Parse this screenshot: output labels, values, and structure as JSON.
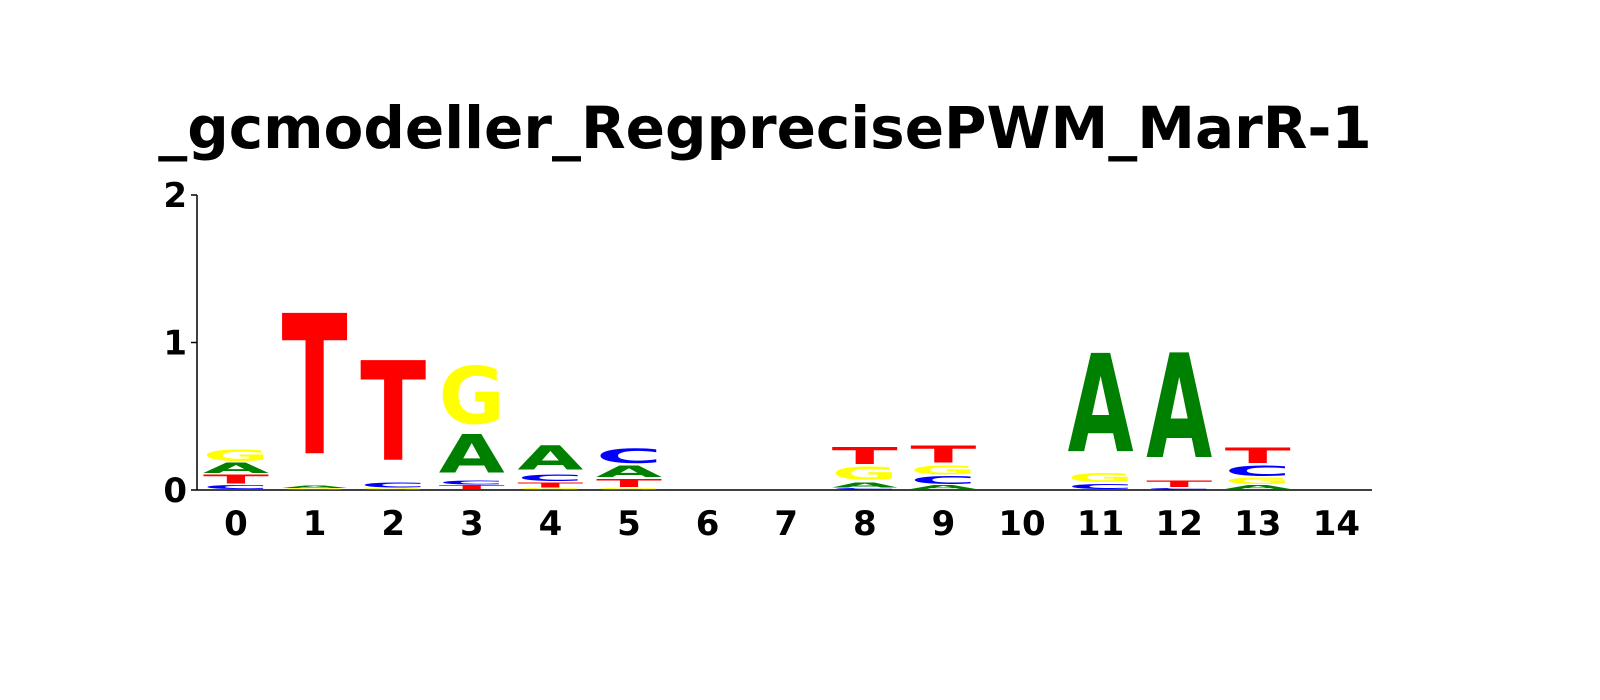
{
  "chart_data": {
    "type": "sequence_logo",
    "title": "_gcmodeller_RegprecisePWM_MarR-1",
    "xlabel": "",
    "ylabel": "",
    "ylim": [
      0,
      2
    ],
    "yticks": [
      "0",
      "1",
      "2"
    ],
    "categories": [
      "0",
      "1",
      "2",
      "3",
      "4",
      "5",
      "6",
      "7",
      "8",
      "9",
      "10",
      "11",
      "12",
      "13",
      "14"
    ],
    "colors": {
      "A": "#008000",
      "C": "#0000ff",
      "G": "#ffff00",
      "T": "#ff0000"
    },
    "positions": [
      {
        "pos": "0",
        "stack": [
          {
            "letter": "C",
            "height": 0.03
          },
          {
            "letter": "T",
            "height": 0.07
          },
          {
            "letter": "A",
            "height": 0.08
          },
          {
            "letter": "G",
            "height": 0.09
          }
        ]
      },
      {
        "pos": "1",
        "stack": [
          {
            "letter": "G",
            "height": 0.01
          },
          {
            "letter": "A",
            "height": 0.02
          },
          {
            "letter": "T",
            "height": 1.1
          }
        ]
      },
      {
        "pos": "2",
        "stack": [
          {
            "letter": "G",
            "height": 0.01
          },
          {
            "letter": "C",
            "height": 0.04
          },
          {
            "letter": "T",
            "height": 0.78
          }
        ]
      },
      {
        "pos": "3",
        "stack": [
          {
            "letter": "T",
            "height": 0.03
          },
          {
            "letter": "C",
            "height": 0.03
          },
          {
            "letter": "A",
            "height": 0.3
          },
          {
            "letter": "G",
            "height": 0.45
          }
        ]
      },
      {
        "pos": "4",
        "stack": [
          {
            "letter": "G",
            "height": 0.01
          },
          {
            "letter": "T",
            "height": 0.04
          },
          {
            "letter": "C",
            "height": 0.05
          },
          {
            "letter": "A",
            "height": 0.19
          }
        ]
      },
      {
        "pos": "5",
        "stack": [
          {
            "letter": "G",
            "height": 0.01
          },
          {
            "letter": "T",
            "height": 0.06
          },
          {
            "letter": "A",
            "height": 0.09
          },
          {
            "letter": "C",
            "height": 0.11
          }
        ]
      },
      {
        "pos": "6",
        "stack": []
      },
      {
        "pos": "7",
        "stack": []
      },
      {
        "pos": "8",
        "stack": [
          {
            "letter": "C",
            "height": 0.01
          },
          {
            "letter": "A",
            "height": 0.04
          },
          {
            "letter": "G",
            "height": 0.1
          },
          {
            "letter": "T",
            "height": 0.13
          }
        ]
      },
      {
        "pos": "9",
        "stack": [
          {
            "letter": "A",
            "height": 0.03
          },
          {
            "letter": "C",
            "height": 0.06
          },
          {
            "letter": "G",
            "height": 0.07
          },
          {
            "letter": "T",
            "height": 0.13
          }
        ]
      },
      {
        "pos": "10",
        "stack": []
      },
      {
        "pos": "11",
        "stack": [
          {
            "letter": "C",
            "height": 0.04
          },
          {
            "letter": "G",
            "height": 0.07
          },
          {
            "letter": "A",
            "height": 0.77
          }
        ]
      },
      {
        "pos": "12",
        "stack": [
          {
            "letter": "C",
            "height": 0.01
          },
          {
            "letter": "T",
            "height": 0.05
          },
          {
            "letter": "A",
            "height": 0.82
          }
        ]
      },
      {
        "pos": "13",
        "stack": [
          {
            "letter": "A",
            "height": 0.03
          },
          {
            "letter": "G",
            "height": 0.05
          },
          {
            "letter": "C",
            "height": 0.08
          },
          {
            "letter": "T",
            "height": 0.12
          }
        ]
      },
      {
        "pos": "14",
        "stack": []
      }
    ]
  }
}
